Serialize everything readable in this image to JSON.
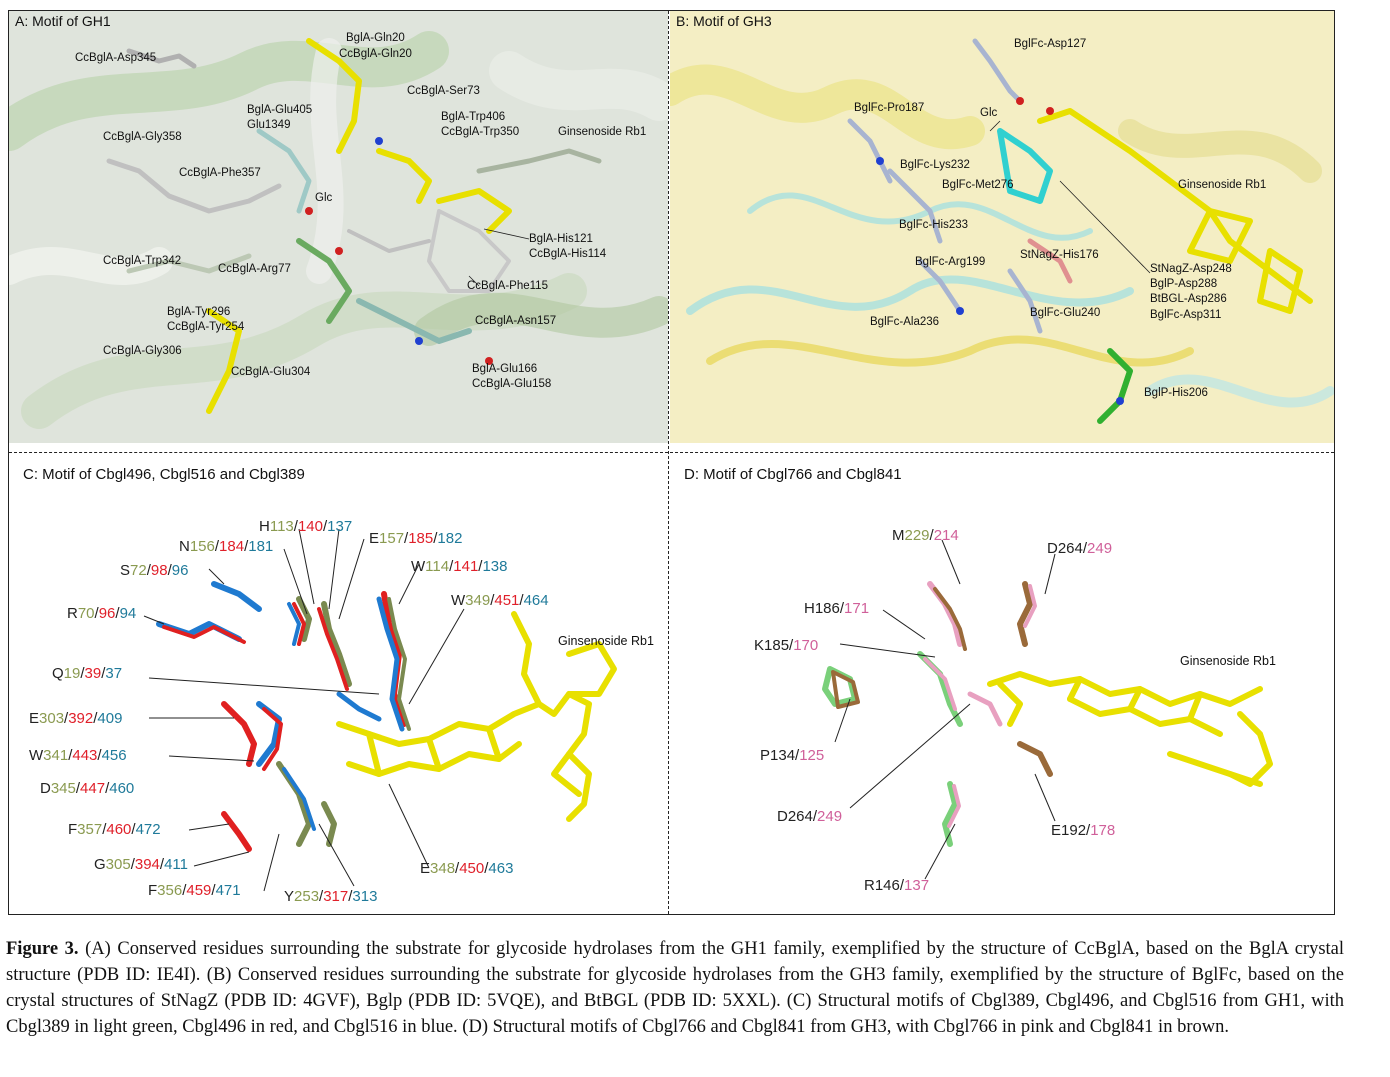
{
  "panels": {
    "a": {
      "title": "A: Motif of GH1",
      "labels": [
        "CcBglA-Asp345",
        "BglA-Gln20",
        "CcBglA-Gln20",
        "CcBglA-Ser73",
        "BglA-Glu405",
        "Glu1349",
        "BglA-Trp406",
        "CcBglA-Trp350",
        "Ginsenoside Rb1",
        "CcBglA-Gly358",
        "CcBglA-Phe357",
        "Glc",
        "BglA-His121",
        "CcBglA-His114",
        "CcBglA-Trp342",
        "CcBglA-Arg77",
        "CcBglA-Phe115",
        "BglA-Tyr296",
        "CcBglA-Tyr254",
        "CcBglA-Asn157",
        "CcBglA-Gly306",
        "CcBglA-Glu304",
        "BglA-Glu166",
        "CcBglA-Glu158"
      ]
    },
    "b": {
      "title": "B: Motif of GH3",
      "labels": [
        "BglFc-Asp127",
        "BglFc-Pro187",
        "Glc",
        "BglFc-Lys232",
        "BglFc-Met276",
        "Ginsenoside Rb1",
        "BglFc-His233",
        "BglFc-Arg199",
        "StNagZ-His176",
        "StNagZ-Asp248",
        "BglP-Asp288",
        "BtBGL-Asp286",
        "BglFc-Asp311",
        "BglFc-Ala236",
        "BglFc-Glu240",
        "BglP-His206"
      ]
    },
    "c": {
      "title": "C: Motif of Cbgl496, Cbgl516 and Cbgl389",
      "ligand": "Ginsenoside Rb1",
      "residues": [
        {
          "aa": "H",
          "n": [
            "113",
            "140",
            "137"
          ]
        },
        {
          "aa": "N",
          "n": [
            "156",
            "184",
            "181"
          ]
        },
        {
          "aa": "E",
          "n": [
            "157",
            "185",
            "182"
          ]
        },
        {
          "aa": "S",
          "n": [
            "72",
            "98",
            "96"
          ]
        },
        {
          "aa": "W",
          "n": [
            "114",
            "141",
            "138"
          ]
        },
        {
          "aa": "W",
          "n": [
            "349",
            "451",
            "464"
          ]
        },
        {
          "aa": "R",
          "n": [
            "70",
            "96",
            "94"
          ]
        },
        {
          "aa": "Q",
          "n": [
            "19",
            "39",
            "37"
          ]
        },
        {
          "aa": "E",
          "n": [
            "303",
            "392",
            "409"
          ]
        },
        {
          "aa": "W",
          "n": [
            "341",
            "443",
            "456"
          ]
        },
        {
          "aa": "D",
          "n": [
            "345",
            "447",
            "460"
          ]
        },
        {
          "aa": "F",
          "n": [
            "357",
            "460",
            "472"
          ]
        },
        {
          "aa": "G",
          "n": [
            "305",
            "394",
            "411"
          ]
        },
        {
          "aa": "E",
          "n": [
            "348",
            "450",
            "463"
          ]
        },
        {
          "aa": "F",
          "n": [
            "356",
            "459",
            "471"
          ]
        },
        {
          "aa": "Y",
          "n": [
            "253",
            "317",
            "313"
          ]
        }
      ]
    },
    "d": {
      "title": "D: Motif of Cbgl766 and Cbgl841",
      "ligand": "Ginsenoside Rb1",
      "residues": [
        {
          "aa": "M",
          "n": [
            "229",
            "214"
          ]
        },
        {
          "aa": "D",
          "n": [
            "264",
            "249"
          ]
        },
        {
          "aa": "H",
          "n": [
            "186",
            "171"
          ]
        },
        {
          "aa": "K",
          "n": [
            "185",
            "170"
          ]
        },
        {
          "aa": "P",
          "n": [
            "134",
            "125"
          ]
        },
        {
          "aa": "D",
          "n": [
            "264",
            "249"
          ]
        },
        {
          "aa": "E",
          "n": [
            "192",
            "178"
          ]
        },
        {
          "aa": "R",
          "n": [
            "146",
            "137"
          ]
        }
      ]
    }
  },
  "caption": {
    "label": "Figure 3.",
    "text": "(A) Conserved residues surrounding the substrate for glycoside hydrolases from the GH1 family, exemplified by the structure of CcBglA, based on the BglA crystal structure (PDB ID: IE4I). (B) Conserved residues surrounding the substrate for glycoside hydrolases from the GH3 family, exemplified by the structure of BglFc, based on the crystal structures of StNagZ (PDB ID: 4GVF), Bglp (PDB ID: 5VQE), and BtBGL (PDB ID: 5XXL). (C) Structural motifs of Cbgl389, Cbgl496, and Cbgl516 from GH1, with Cbgl389 in light green, Cbgl496 in red, and Cbgl516 in blue. (D) Structural motifs of Cbgl766 and Cbgl841 from GH3, with Cbgl766 in pink and Cbgl841 in brown."
  },
  "colors": {
    "ligand": "#e8e000",
    "cbgl389": "#8a9a50",
    "cbgl496": "#e0202a",
    "cbgl516": "#1f7a9a",
    "cbgl766": "#d0609a",
    "cbgl841": "#9a6a3a"
  }
}
